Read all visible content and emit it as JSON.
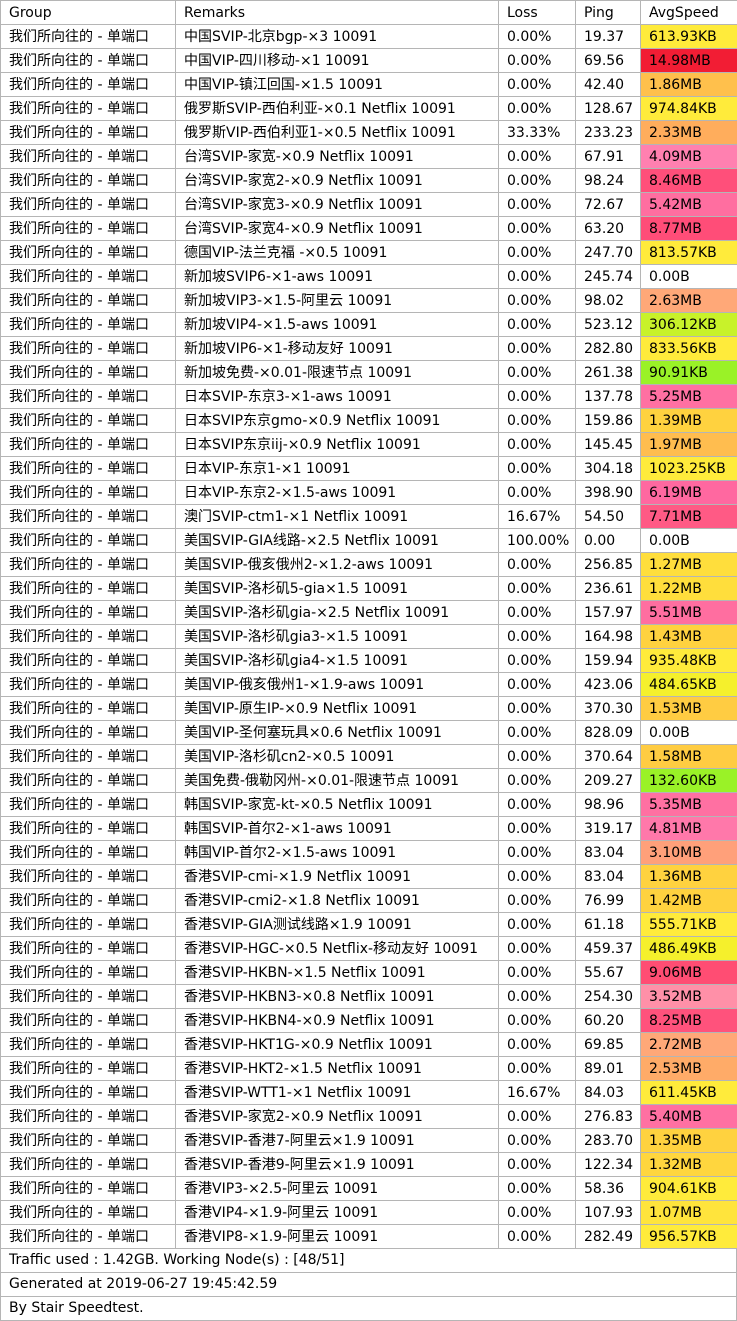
{
  "headers": {
    "group": "Group",
    "remarks": "Remarks",
    "loss": "Loss",
    "ping": "Ping",
    "speed": "AvgSpeed"
  },
  "rows": [
    {
      "group": "我们所向往的 - 单端口",
      "remarks": "中国SVIP-北京bgp-×3 10091",
      "loss": "0.00%",
      "ping": "19.37",
      "speed": "613.93KB",
      "color": "#ffeb3b"
    },
    {
      "group": "我们所向往的 - 单端口",
      "remarks": "中国VIP-四川移动-×1 10091",
      "loss": "0.00%",
      "ping": "69.56",
      "speed": "14.98MB",
      "color": "#f21d34"
    },
    {
      "group": "我们所向往的 - 单端口",
      "remarks": "中国VIP-镇江回国-×1.5 10091",
      "loss": "0.00%",
      "ping": "42.40",
      "speed": "1.86MB",
      "color": "#ffc04c"
    },
    {
      "group": "我们所向往的 - 单端口",
      "remarks": "俄罗斯SVIP-西伯利亚-×0.1 Netflix 10091",
      "loss": "0.00%",
      "ping": "128.67",
      "speed": "974.84KB",
      "color": "#ffeb3b"
    },
    {
      "group": "我们所向往的 - 单端口",
      "remarks": "俄罗斯VIP-西伯利亚1-×0.5 Netflix 10091",
      "loss": "33.33%",
      "ping": "233.23",
      "speed": "2.33MB",
      "color": "#ffad5c"
    },
    {
      "group": "我们所向往的 - 单端口",
      "remarks": "台湾SVIP-家宽-×0.9 Netflix 10091",
      "loss": "0.00%",
      "ping": "67.91",
      "speed": "4.09MB",
      "color": "#ff80b0"
    },
    {
      "group": "我们所向往的 - 单端口",
      "remarks": "台湾SVIP-家宽2-×0.9 Netflix 10091",
      "loss": "0.00%",
      "ping": "98.24",
      "speed": "8.46MB",
      "color": "#ff4f7a"
    },
    {
      "group": "我们所向往的 - 单端口",
      "remarks": "台湾SVIP-家宽3-×0.9 Netflix 10091",
      "loss": "0.00%",
      "ping": "72.67",
      "speed": "5.42MB",
      "color": "#ff6ea0"
    },
    {
      "group": "我们所向往的 - 单端口",
      "remarks": "台湾SVIP-家宽4-×0.9 Netflix 10091",
      "loss": "0.00%",
      "ping": "63.20",
      "speed": "8.77MB",
      "color": "#ff4d78"
    },
    {
      "group": "我们所向往的 - 单端口",
      "remarks": "德国VIP-法兰克福 -×0.5 10091",
      "loss": "0.00%",
      "ping": "247.70",
      "speed": "813.57KB",
      "color": "#ffeb3b"
    },
    {
      "group": "我们所向往的 - 单端口",
      "remarks": "新加坡SVIP6-×1-aws 10091",
      "loss": "0.00%",
      "ping": "245.74",
      "speed": "0.00B",
      "color": "#ffffff"
    },
    {
      "group": "我们所向往的 - 单端口",
      "remarks": "新加坡VIP3-×1.5-阿里云 10091",
      "loss": "0.00%",
      "ping": "98.02",
      "speed": "2.63MB",
      "color": "#ffa878"
    },
    {
      "group": "我们所向往的 - 单端口",
      "remarks": "新加坡VIP4-×1.5-aws 10091",
      "loss": "0.00%",
      "ping": "523.12",
      "speed": "306.12KB",
      "color": "#c8f22a"
    },
    {
      "group": "我们所向往的 - 单端口",
      "remarks": "新加坡VIP6-×1-移动友好 10091",
      "loss": "0.00%",
      "ping": "282.80",
      "speed": "833.56KB",
      "color": "#ffeb3b"
    },
    {
      "group": "我们所向往的 - 单端口",
      "remarks": "新加坡免费-×0.01-限速节点 10091",
      "loss": "0.00%",
      "ping": "261.38",
      "speed": "90.91KB",
      "color": "#9af227"
    },
    {
      "group": "我们所向往的 - 单端口",
      "remarks": "日本SVIP-东京3-×1-aws 10091",
      "loss": "0.00%",
      "ping": "137.78",
      "speed": "5.25MB",
      "color": "#ff70a2"
    },
    {
      "group": "我们所向往的 - 单端口",
      "remarks": "日本SVIP东京gmo-×0.9 Netflix 10091",
      "loss": "0.00%",
      "ping": "159.86",
      "speed": "1.39MB",
      "color": "#ffd23f"
    },
    {
      "group": "我们所向往的 - 单端口",
      "remarks": "日本SVIP东京iij-×0.9 Netflix 10091",
      "loss": "0.00%",
      "ping": "145.45",
      "speed": "1.97MB",
      "color": "#ffbd4f"
    },
    {
      "group": "我们所向往的 - 单端口",
      "remarks": "日本VIP-东京1-×1 10091",
      "loss": "0.00%",
      "ping": "304.18",
      "speed": "1023.25KB",
      "color": "#ffeb3b"
    },
    {
      "group": "我们所向往的 - 单端口",
      "remarks": "日本VIP-东京2-×1.5-aws 10091",
      "loss": "0.00%",
      "ping": "398.90",
      "speed": "6.19MB",
      "color": "#ff68a0"
    },
    {
      "group": "我们所向往的 - 单端口",
      "remarks": "澳门SVIP-ctm1-×1 Netflix 10091",
      "loss": "16.67%",
      "ping": "54.50",
      "speed": "7.71MB",
      "color": "#ff5a85"
    },
    {
      "group": "我们所向往的 - 单端口",
      "remarks": "美国SVIP-GIA线路-×2.5 Netflix 10091",
      "loss": "100.00%",
      "ping": "0.00",
      "speed": "0.00B",
      "color": "#ffffff"
    },
    {
      "group": "我们所向往的 - 单端口",
      "remarks": "美国SVIP-俄亥俄州2-×1.2-aws 10091",
      "loss": "0.00%",
      "ping": "256.85",
      "speed": "1.27MB",
      "color": "#ffde3c"
    },
    {
      "group": "我们所向往的 - 单端口",
      "remarks": "美国SVIP-洛杉矶5-gia×1.5 10091",
      "loss": "0.00%",
      "ping": "236.61",
      "speed": "1.22MB",
      "color": "#ffde3c"
    },
    {
      "group": "我们所向往的 - 单端口",
      "remarks": "美国SVIP-洛杉矶gia-×2.5 Netflix 10091",
      "loss": "0.00%",
      "ping": "157.97",
      "speed": "5.51MB",
      "color": "#ff6ea0"
    },
    {
      "group": "我们所向往的 - 单端口",
      "remarks": "美国SVIP-洛杉矶gia3-×1.5 10091",
      "loss": "0.00%",
      "ping": "164.98",
      "speed": "1.43MB",
      "color": "#ffd23f"
    },
    {
      "group": "我们所向往的 - 单端口",
      "remarks": "美国SVIP-洛杉矶gia4-×1.5 10091",
      "loss": "0.00%",
      "ping": "159.94",
      "speed": "935.48KB",
      "color": "#ffeb3b"
    },
    {
      "group": "我们所向往的 - 单端口",
      "remarks": "美国VIP-俄亥俄州1-×1.9-aws 10091",
      "loss": "0.00%",
      "ping": "423.06",
      "speed": "484.65KB",
      "color": "#f5f02c"
    },
    {
      "group": "我们所向往的 - 单端口",
      "remarks": "美国VIP-原生IP-×0.9 Netflix 10091",
      "loss": "0.00%",
      "ping": "370.30",
      "speed": "1.53MB",
      "color": "#ffcc42"
    },
    {
      "group": "我们所向往的 - 单端口",
      "remarks": "美国VIP-圣何塞玩具×0.6 Netflix 10091",
      "loss": "0.00%",
      "ping": "828.09",
      "speed": "0.00B",
      "color": "#ffffff"
    },
    {
      "group": "我们所向往的 - 单端口",
      "remarks": "美国VIP-洛杉矶cn2-×0.5 10091",
      "loss": "0.00%",
      "ping": "370.64",
      "speed": "1.58MB",
      "color": "#ffcc42"
    },
    {
      "group": "我们所向往的 - 单端口",
      "remarks": "美国免费-俄勒冈州-×0.01-限速节点 10091",
      "loss": "0.00%",
      "ping": "209.27",
      "speed": "132.60KB",
      "color": "#9af227"
    },
    {
      "group": "我们所向往的 - 单端口",
      "remarks": "韩国SVIP-家宽-kt-×0.5 Netflix 10091",
      "loss": "0.00%",
      "ping": "98.96",
      "speed": "5.35MB",
      "color": "#ff70a2"
    },
    {
      "group": "我们所向往的 - 单端口",
      "remarks": "韩国SVIP-首尔2-×1-aws 10091",
      "loss": "0.00%",
      "ping": "319.17",
      "speed": "4.81MB",
      "color": "#ff78aa"
    },
    {
      "group": "我们所向往的 - 单端口",
      "remarks": "韩国VIP-首尔2-×1.5-aws 10091",
      "loss": "0.00%",
      "ping": "83.04",
      "speed": "3.10MB",
      "color": "#ffa07a"
    },
    {
      "group": "我们所向往的 - 单端口",
      "remarks": "香港SVIP-cmi-×1.9 Netflix 10091",
      "loss": "0.00%",
      "ping": "83.04",
      "speed": "1.36MB",
      "color": "#ffd23f"
    },
    {
      "group": "我们所向往的 - 单端口",
      "remarks": "香港SVIP-cmi2-×1.8 Netflix 10091",
      "loss": "0.00%",
      "ping": "76.99",
      "speed": "1.42MB",
      "color": "#ffd23f"
    },
    {
      "group": "我们所向往的 - 单端口",
      "remarks": "香港SVIP-GIA测试线路×1.9 10091",
      "loss": "0.00%",
      "ping": "61.18",
      "speed": "555.71KB",
      "color": "#ffeb3b"
    },
    {
      "group": "我们所向往的 - 单端口",
      "remarks": "香港SVIP-HGC-×0.5 Netflix-移动友好 10091",
      "loss": "0.00%",
      "ping": "459.37",
      "speed": "486.49KB",
      "color": "#f5f02c"
    },
    {
      "group": "我们所向往的 - 单端口",
      "remarks": "香港SVIP-HKBN-×1.5 Netflix 10091",
      "loss": "0.00%",
      "ping": "55.67",
      "speed": "9.06MB",
      "color": "#ff4d73"
    },
    {
      "group": "我们所向往的 - 单端口",
      "remarks": "香港SVIP-HKBN3-×0.8 Netflix 10091",
      "loss": "0.00%",
      "ping": "254.30",
      "speed": "3.52MB",
      "color": "#ff90a8"
    },
    {
      "group": "我们所向往的 - 单端口",
      "remarks": "香港SVIP-HKBN4-×0.9 Netflix 10091",
      "loss": "0.00%",
      "ping": "60.20",
      "speed": "8.25MB",
      "color": "#ff527c"
    },
    {
      "group": "我们所向往的 - 单端口",
      "remarks": "香港SVIP-HKT1G-×0.9 Netflix 10091",
      "loss": "0.00%",
      "ping": "69.85",
      "speed": "2.72MB",
      "color": "#ffa878"
    },
    {
      "group": "我们所向往的 - 单端口",
      "remarks": "香港SVIP-HKT2-×1.5 Netflix 10091",
      "loss": "0.00%",
      "ping": "89.01",
      "speed": "2.53MB",
      "color": "#ffab68"
    },
    {
      "group": "我们所向往的 - 单端口",
      "remarks": "香港SVIP-WTT1-×1 Netflix 10091",
      "loss": "16.67%",
      "ping": "84.03",
      "speed": "611.45KB",
      "color": "#ffeb3b"
    },
    {
      "group": "我们所向往的 - 单端口",
      "remarks": "香港SVIP-家宽2-×0.9 Netflix 10091",
      "loss": "0.00%",
      "ping": "276.83",
      "speed": "5.40MB",
      "color": "#ff70a2"
    },
    {
      "group": "我们所向往的 - 单端口",
      "remarks": "香港SVIP-香港7-阿里云×1.9 10091",
      "loss": "0.00%",
      "ping": "283.70",
      "speed": "1.35MB",
      "color": "#ffd23f"
    },
    {
      "group": "我们所向往的 - 单端口",
      "remarks": "香港SVIP-香港9-阿里云×1.9 10091",
      "loss": "0.00%",
      "ping": "122.34",
      "speed": "1.32MB",
      "color": "#ffd63e"
    },
    {
      "group": "我们所向往的 - 单端口",
      "remarks": "香港VIP3-×2.5-阿里云 10091",
      "loss": "0.00%",
      "ping": "58.36",
      "speed": "904.61KB",
      "color": "#ffeb3b"
    },
    {
      "group": "我们所向往的 - 单端口",
      "remarks": "香港VIP4-×1.9-阿里云 10091",
      "loss": "0.00%",
      "ping": "107.93",
      "speed": "1.07MB",
      "color": "#ffe43c"
    },
    {
      "group": "我们所向往的 - 单端口",
      "remarks": "香港VIP8-×1.9-阿里云 10091",
      "loss": "0.00%",
      "ping": "282.49",
      "speed": "956.57KB",
      "color": "#ffeb3b"
    }
  ],
  "footer": {
    "traffic": "Traffic used : 1.42GB. Working Node(s) : [48/51]",
    "generated": "Generated at 2019-06-27 19:45:42.59",
    "credit": "By Stair Speedtest."
  }
}
